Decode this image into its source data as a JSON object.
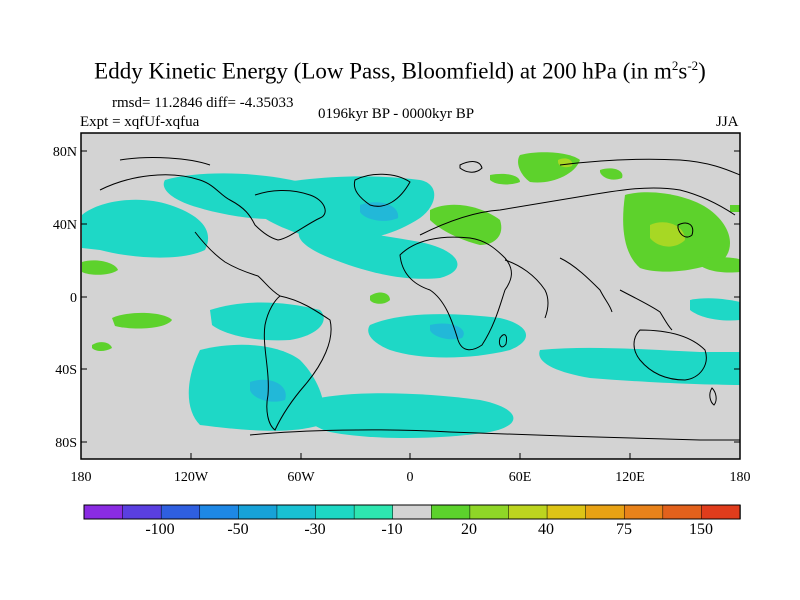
{
  "title": {
    "prefix": "Eddy Kinetic Energy (Low Pass, Bloomfield) at 200 hPa (in m",
    "sup1": "2",
    "mid": "s",
    "sup2": "-2",
    "suffix": ")"
  },
  "stats": "rmsd= 11.2846 diff= -4.35033",
  "expt": "Expt = xqfUf-xqfua",
  "period": "0196kyr BP - 0000kyr BP",
  "season": "JJA",
  "y_ticks": [
    "80N",
    "40N",
    "0",
    "40S",
    "80S"
  ],
  "x_ticks": [
    "180",
    "120W",
    "60W",
    "0",
    "60E",
    "120E",
    "180"
  ],
  "colorbar": {
    "labels": [
      "-100",
      "-50",
      "-30",
      "-10",
      "20",
      "40",
      "75",
      "150"
    ],
    "colors": [
      "#8a2be2",
      "#5a3fe0",
      "#2f5fe0",
      "#1e88e5",
      "#17a2d8",
      "#19c1d3",
      "#1dd8c4",
      "#2ee6b0",
      "#d3d3d3",
      "#5cd22c",
      "#8fd627",
      "#bcd41f",
      "#ddc416",
      "#e8a214",
      "#e8821a",
      "#e2611c",
      "#e03c1c"
    ]
  },
  "palette": {
    "neutral": "#d3d3d3",
    "cyan": "#1ed8c6",
    "blue": "#22b8d8",
    "green": "#5dd22c",
    "lime": "#a7d824"
  }
}
